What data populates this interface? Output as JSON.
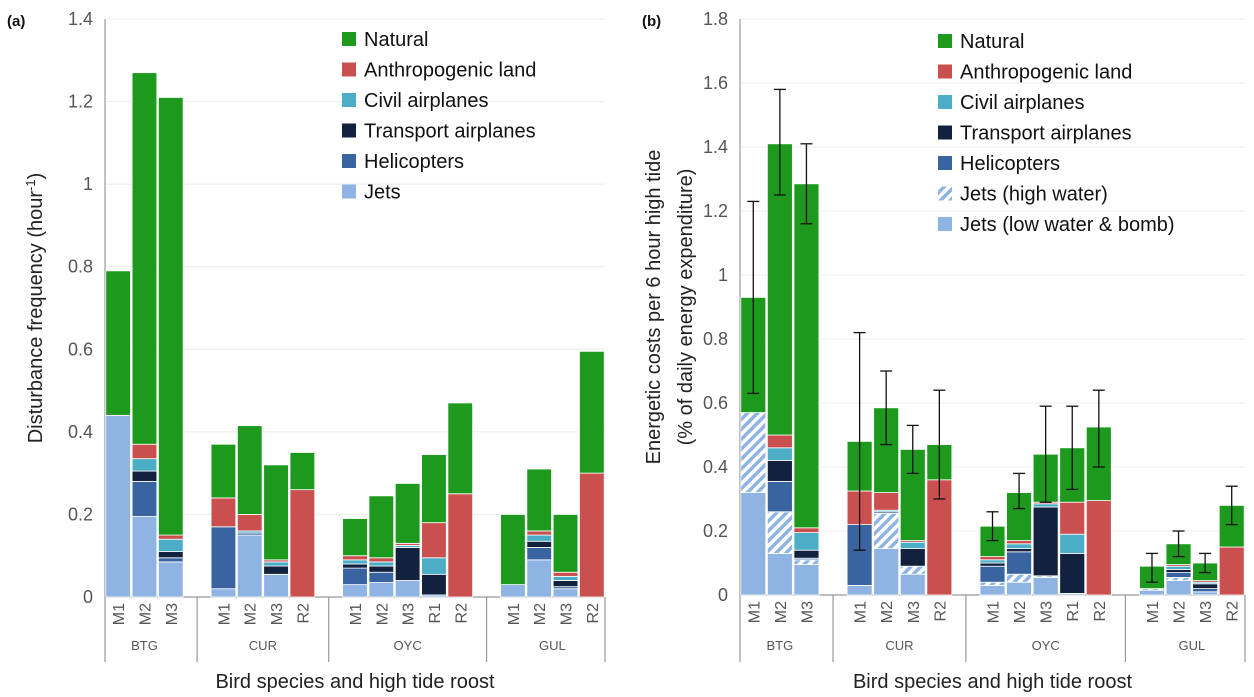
{
  "chart_data": [
    {
      "type": "bar",
      "stacked": true,
      "panel_label": "(a)",
      "ylabel": {
        "text": "Disturbance frequency (hour",
        "superscript": "-1",
        "suffix": ")"
      },
      "xlabel": "Bird species and high tide roost",
      "groups": [
        {
          "label": "BTG",
          "categories": [
            "M1",
            "M2",
            "M3"
          ]
        },
        {
          "label": "CUR",
          "categories": [
            "M1",
            "M2",
            "M3",
            "R2"
          ]
        },
        {
          "label": "OYC",
          "categories": [
            "M1",
            "M2",
            "M3",
            "R1",
            "R2"
          ]
        },
        {
          "label": "GUL",
          "categories": [
            "M1",
            "M2",
            "M3",
            "R2"
          ]
        }
      ],
      "ylim": [
        0,
        1.4
      ],
      "yticks": [
        0,
        0.2,
        0.4,
        0.6,
        0.8,
        1,
        1.2,
        1.4
      ],
      "grid": true,
      "legend": "upper right",
      "series": [
        {
          "name": "Jets",
          "color": "#8fb4e3",
          "values": [
            0.44,
            0.195,
            0.085,
            0.02,
            0.15,
            0.055,
            0,
            0.03,
            0.035,
            0.04,
            0.005,
            0,
            0.03,
            0.09,
            0.02,
            0
          ]
        },
        {
          "name": "Helicopters",
          "color": "#3a64a0",
          "values": [
            0,
            0.085,
            0.01,
            0.15,
            0.005,
            0,
            0,
            0.04,
            0.025,
            0,
            0,
            0,
            0,
            0.03,
            0.005,
            0
          ]
        },
        {
          "name": "Transport airplanes",
          "color": "#12213d",
          "values": [
            0,
            0.025,
            0.015,
            0,
            0,
            0.02,
            0,
            0.01,
            0.015,
            0.08,
            0.05,
            0,
            0,
            0.015,
            0.015,
            0
          ]
        },
        {
          "name": "Civil airplanes",
          "color": "#4badc6",
          "values": [
            0,
            0.03,
            0.03,
            0,
            0.005,
            0.01,
            0,
            0.01,
            0.01,
            0.005,
            0.04,
            0,
            0,
            0.015,
            0.01,
            0
          ]
        },
        {
          "name": "Anthropogenic land",
          "color": "#c9504f",
          "values": [
            0,
            0.035,
            0.01,
            0.07,
            0.04,
            0.005,
            0.26,
            0.01,
            0.01,
            0.005,
            0.085,
            0.25,
            0,
            0.01,
            0.01,
            0.3
          ]
        },
        {
          "name": "Natural",
          "color": "#1d9a1d",
          "values": [
            0.35,
            0.9,
            1.06,
            0.13,
            0.215,
            0.23,
            0.09,
            0.09,
            0.15,
            0.145,
            0.165,
            0.22,
            0.17,
            0.15,
            0.14,
            0.295
          ]
        }
      ]
    },
    {
      "type": "bar",
      "stacked": true,
      "panel_label": "(b)",
      "ylabel": [
        "Energetic costs per 6 hour high tide",
        "(% of daily energy expenditure)"
      ],
      "xlabel": "Bird species and high tide roost",
      "groups": [
        {
          "label": "BTG",
          "categories": [
            "M1",
            "M2",
            "M3"
          ]
        },
        {
          "label": "CUR",
          "categories": [
            "M1",
            "M2",
            "M3",
            "R2"
          ]
        },
        {
          "label": "OYC",
          "categories": [
            "M1",
            "M2",
            "M3",
            "R1",
            "R2"
          ]
        },
        {
          "label": "GUL",
          "categories": [
            "M1",
            "M2",
            "M3",
            "R2"
          ]
        }
      ],
      "ylim": [
        0,
        1.8
      ],
      "yticks": [
        0,
        0.2,
        0.4,
        0.6,
        0.8,
        1,
        1.2,
        1.4,
        1.6,
        1.8
      ],
      "grid": true,
      "legend": "upper right",
      "series": [
        {
          "name": "Jets (low water & bomb)",
          "color": "#8fb4e3",
          "values": [
            0.32,
            0.13,
            0.095,
            0.03,
            0.145,
            0.065,
            0,
            0.03,
            0.04,
            0.055,
            0.005,
            0,
            0.015,
            0.045,
            0.01,
            0
          ]
        },
        {
          "name": "Jets (high water)",
          "color": "#8fb4e3",
          "pattern": "hatch",
          "values": [
            0.25,
            0.13,
            0.015,
            0,
            0.11,
            0.025,
            0,
            0.01,
            0.025,
            0.005,
            0,
            0,
            0.005,
            0.01,
            0,
            0
          ]
        },
        {
          "name": "Helicopters",
          "color": "#3a64a0",
          "values": [
            0,
            0.095,
            0.005,
            0.19,
            0.005,
            0,
            0,
            0.05,
            0.07,
            0,
            0,
            0,
            0,
            0.015,
            0.01,
            0
          ]
        },
        {
          "name": "Transport airplanes",
          "color": "#12213d",
          "values": [
            0,
            0.065,
            0.025,
            0,
            0,
            0.055,
            0,
            0.01,
            0.01,
            0.215,
            0.125,
            0,
            0,
            0.01,
            0.015,
            0
          ]
        },
        {
          "name": "Civil airplanes",
          "color": "#4badc6",
          "values": [
            0,
            0.04,
            0.055,
            0,
            0.005,
            0.02,
            0,
            0.01,
            0.015,
            0.01,
            0.06,
            0,
            0,
            0.01,
            0.005,
            0
          ]
        },
        {
          "name": "Anthropogenic land",
          "color": "#c9504f",
          "values": [
            0,
            0.04,
            0.015,
            0.105,
            0.055,
            0.005,
            0.36,
            0.01,
            0.01,
            0.005,
            0.1,
            0.295,
            0,
            0.005,
            0.005,
            0.15
          ]
        },
        {
          "name": "Natural",
          "color": "#1d9a1d",
          "values": [
            0.36,
            0.91,
            1.075,
            0.155,
            0.265,
            0.285,
            0.11,
            0.095,
            0.15,
            0.15,
            0.17,
            0.23,
            0.07,
            0.065,
            0.055,
            0.13
          ]
        }
      ],
      "error_low": [
        0.63,
        1.25,
        1.16,
        0.14,
        0.47,
        0.38,
        0.3,
        0.17,
        0.27,
        0.29,
        0.33,
        0.4,
        0.04,
        0.12,
        0.07,
        0.22
      ],
      "error_high": [
        1.23,
        1.58,
        1.41,
        0.82,
        0.7,
        0.53,
        0.64,
        0.26,
        0.38,
        0.59,
        0.59,
        0.64,
        0.13,
        0.2,
        0.13,
        0.34
      ]
    }
  ]
}
